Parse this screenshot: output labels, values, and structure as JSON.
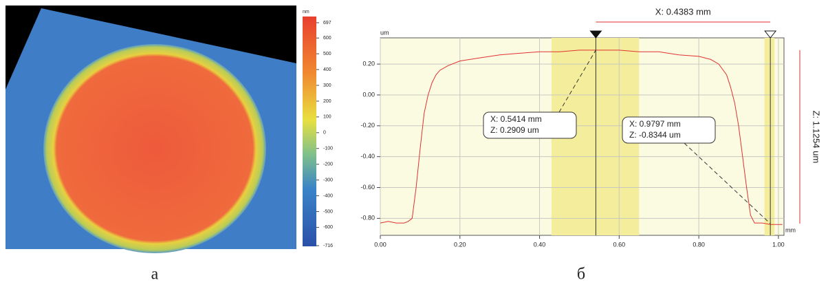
{
  "chart_data": [
    {
      "type": "image",
      "caption": "а",
      "colorbar": {
        "unit": "nm",
        "clim": [
          -716,
          697
        ],
        "ticks": [
          697,
          600,
          500,
          400,
          300,
          200,
          100,
          0,
          -100,
          -200,
          -300,
          -400,
          -500,
          -600,
          -716
        ]
      }
    },
    {
      "type": "line",
      "caption": "б",
      "y_label": "um",
      "x_label": "mm",
      "color": "#e03030",
      "x": [
        0,
        0.02,
        0.04,
        0.06,
        0.07,
        0.08,
        0.09,
        0.1,
        0.11,
        0.12,
        0.13,
        0.14,
        0.15,
        0.17,
        0.2,
        0.25,
        0.3,
        0.35,
        0.4,
        0.45,
        0.5,
        0.54,
        0.6,
        0.65,
        0.7,
        0.75,
        0.8,
        0.83,
        0.85,
        0.87,
        0.88,
        0.89,
        0.9,
        0.91,
        0.92,
        0.93,
        0.94,
        0.96,
        0.98,
        1.0,
        1.01
      ],
      "values": [
        -0.83,
        -0.82,
        -0.83,
        -0.83,
        -0.82,
        -0.8,
        -0.6,
        -0.35,
        -0.12,
        0.0,
        0.08,
        0.13,
        0.16,
        0.19,
        0.22,
        0.24,
        0.26,
        0.27,
        0.28,
        0.28,
        0.29,
        0.29,
        0.29,
        0.28,
        0.28,
        0.26,
        0.25,
        0.23,
        0.2,
        0.13,
        0.05,
        -0.05,
        -0.2,
        -0.4,
        -0.6,
        -0.78,
        -0.83,
        -0.83,
        -0.84,
        -0.84,
        -0.84
      ],
      "xlim": [
        0,
        1.014
      ],
      "ylim": [
        -0.91,
        0.37
      ],
      "xticks": [
        {
          "value": 0,
          "label": "0.00"
        },
        {
          "value": 0.2,
          "label": "0.20"
        },
        {
          "value": 0.4,
          "label": "0.40"
        },
        {
          "value": 0.6,
          "label": "0.60"
        },
        {
          "value": 0.8,
          "label": "0.80"
        },
        {
          "value": 1,
          "label": "1.00"
        }
      ],
      "yticks": [
        {
          "value": 0.2,
          "label": "0.20"
        },
        {
          "value": 0,
          "label": "0.00"
        },
        {
          "value": -0.2,
          "label": "-0.20"
        },
        {
          "value": -0.4,
          "label": "-0.40"
        },
        {
          "value": -0.6,
          "label": "-0.60"
        },
        {
          "value": -0.8,
          "label": "-0.80"
        }
      ],
      "grid": true,
      "bands": [
        [
          0.43,
          0.65
        ],
        [
          0.965,
          0.99
        ]
      ],
      "cursors": [
        {
          "x": 0.5414,
          "z": 0.2909,
          "label_x": "X: 0.5414 mm",
          "label_z": "Z: 0.2909 um"
        },
        {
          "x": 0.9797,
          "z": -0.8344,
          "label_x": "X: 0.9797 mm",
          "label_z": "Z: -0.8344 um"
        }
      ],
      "dx_label": "X: 0.4383 mm",
      "dz_label": "Z: 1.1254 um"
    }
  ]
}
